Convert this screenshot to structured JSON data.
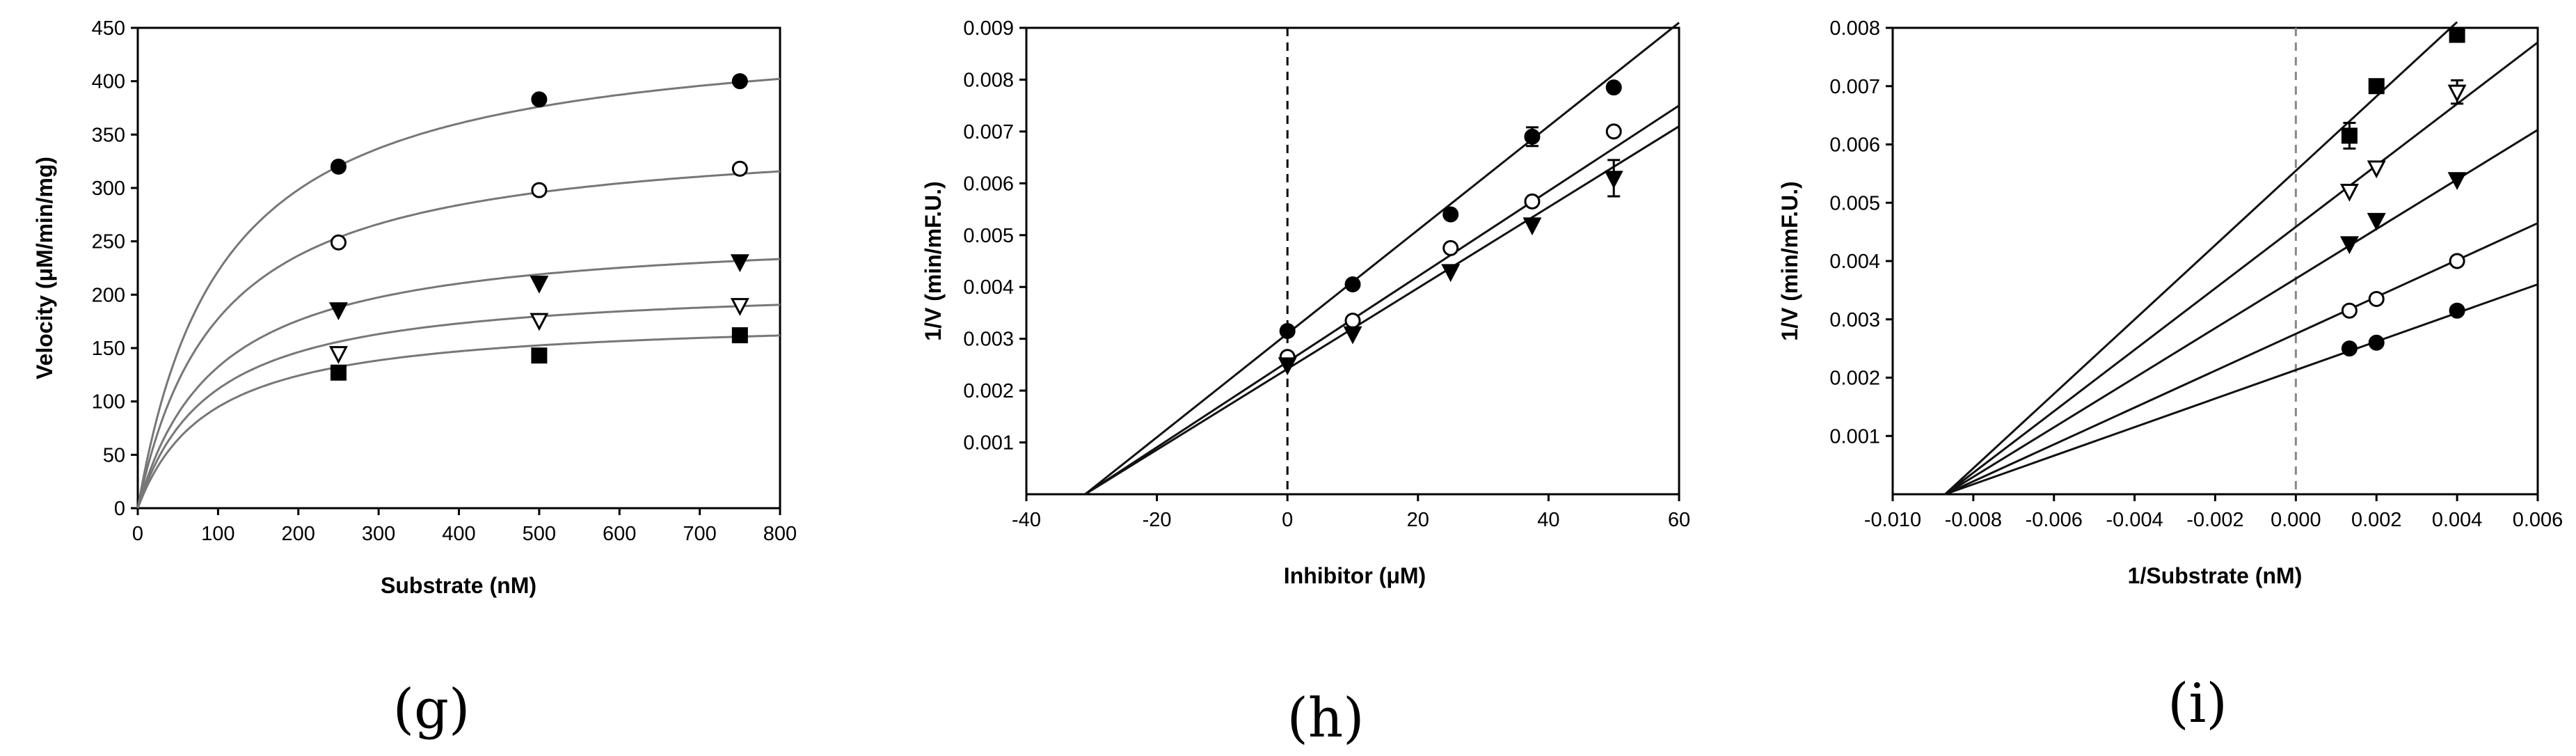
{
  "chart_data": [
    {
      "id": "g",
      "type": "line",
      "caption": "(g)",
      "xlabel": "Substrate (nM)",
      "ylabel": "Velocity (μM/min/mg)",
      "xlim": [
        0,
        800
      ],
      "ylim": [
        0,
        450
      ],
      "xticks": [
        0,
        100,
        200,
        300,
        400,
        500,
        600,
        700,
        800
      ],
      "xtick_labels": [
        "0",
        "100",
        "200",
        "300",
        "400",
        "500",
        "600",
        "700",
        "800"
      ],
      "yticks": [
        0,
        50,
        100,
        150,
        200,
        250,
        300,
        350,
        400,
        450
      ],
      "ytick_labels": [
        "0",
        "50",
        "100",
        "150",
        "200",
        "250",
        "300",
        "350",
        "400",
        "450"
      ],
      "series": [
        {
          "marker": "circle-filled",
          "x": [
            250,
            500,
            750
          ],
          "y": [
            320,
            383,
            400
          ],
          "fit": {
            "type": "michaelis-menten",
            "vmax": 455,
            "km": 105
          }
        },
        {
          "marker": "circle-open",
          "x": [
            250,
            500,
            750
          ],
          "y": [
            249,
            298,
            318
          ],
          "fit": {
            "type": "michaelis-menten",
            "vmax": 355,
            "km": 100
          }
        },
        {
          "marker": "triangle-down-filled",
          "x": [
            250,
            500,
            750
          ],
          "y": [
            186,
            211,
            231
          ],
          "fit": {
            "type": "michaelis-menten",
            "vmax": 262,
            "km": 98
          }
        },
        {
          "marker": "triangle-down-open",
          "x": [
            250,
            500,
            750
          ],
          "y": [
            145,
            176,
            190
          ],
          "fit": {
            "type": "michaelis-menten",
            "vmax": 212,
            "km": 90
          }
        },
        {
          "marker": "square-filled",
          "x": [
            250,
            500,
            750
          ],
          "y": [
            127,
            143,
            162
          ],
          "fit": {
            "type": "michaelis-menten",
            "vmax": 180,
            "km": 90
          }
        }
      ]
    },
    {
      "id": "h",
      "type": "scatter",
      "caption": "(h)",
      "xlabel": "Inhibitor (μM)",
      "ylabel": "1/V (min/mF.U.)",
      "xlim": [
        -40,
        60
      ],
      "ylim": [
        0,
        0.009
      ],
      "xticks": [
        -40,
        -20,
        0,
        20,
        40,
        60
      ],
      "xtick_labels": [
        "-40",
        "-20",
        "0",
        "20",
        "40",
        "60"
      ],
      "yticks": [
        0.001,
        0.002,
        0.003,
        0.004,
        0.005,
        0.006,
        0.007,
        0.008,
        0.009
      ],
      "ytick_labels": [
        "0.001",
        "0.002",
        "0.003",
        "0.004",
        "0.005",
        "0.006",
        "0.007",
        "0.008",
        "0.009"
      ],
      "vline": 0,
      "series": [
        {
          "marker": "circle-filled",
          "x": [
            0,
            10,
            25,
            37.5,
            50
          ],
          "y": [
            0.00315,
            0.00405,
            0.0054,
            0.0069,
            0.00785
          ],
          "err": [
            0,
            0,
            0,
            0.00018,
            0
          ],
          "fit": {
            "type": "linear",
            "x": [
              -31,
              60
            ],
            "y": [
              0,
              0.0091
            ]
          }
        },
        {
          "marker": "circle-open",
          "x": [
            0,
            10,
            25,
            37.5,
            50
          ],
          "y": [
            0.00265,
            0.00335,
            0.00475,
            0.00565,
            0.007
          ],
          "err": [
            0,
            0,
            0,
            0,
            0
          ],
          "fit": {
            "type": "linear",
            "x": [
              -31,
              60
            ],
            "y": [
              0,
              0.0075
            ]
          }
        },
        {
          "marker": "triangle-down-filled",
          "x": [
            0,
            10,
            25,
            37.5,
            50
          ],
          "y": [
            0.0025,
            0.0031,
            0.0043,
            0.0052,
            0.0061
          ],
          "err": [
            0,
            0,
            0,
            0,
            0.00035
          ],
          "fit": {
            "type": "linear",
            "x": [
              -31,
              60
            ],
            "y": [
              0,
              0.0071
            ]
          }
        }
      ]
    },
    {
      "id": "i",
      "type": "scatter",
      "caption": "(i)",
      "xlabel": "1/Substrate (nM)",
      "ylabel": "1/V (min/mF.U.)",
      "xlim": [
        -0.01,
        0.006
      ],
      "ylim": [
        0,
        0.008
      ],
      "xticks": [
        -0.01,
        -0.008,
        -0.006,
        -0.004,
        -0.002,
        0,
        0.002,
        0.004,
        0.006
      ],
      "xtick_labels": [
        "-0.010",
        "-0.008",
        "-0.006",
        "-0.004",
        "-0.002",
        "0.000",
        "0.002",
        "0.004",
        "0.006"
      ],
      "yticks": [
        0.001,
        0.002,
        0.003,
        0.004,
        0.005,
        0.006,
        0.007,
        0.008
      ],
      "ytick_labels": [
        "0.001",
        "0.002",
        "0.003",
        "0.004",
        "0.005",
        "0.006",
        "0.007",
        "0.008"
      ],
      "vline": 0,
      "series": [
        {
          "marker": "square-filled",
          "x": [
            0.00133,
            0.002,
            0.004
          ],
          "y": [
            0.00615,
            0.007,
            0.00788
          ],
          "err": [
            0.00022,
            0,
            0
          ],
          "fit": {
            "type": "linear",
            "x": [
              -0.0087,
              0.004
            ],
            "y": [
              0,
              0.0081
            ]
          }
        },
        {
          "marker": "triangle-down-open",
          "x": [
            0.00133,
            0.002,
            0.004
          ],
          "y": [
            0.0052,
            0.0056,
            0.0069
          ],
          "err": [
            0,
            0,
            0.0002
          ],
          "fit": {
            "type": "linear",
            "x": [
              -0.0087,
              0.006
            ],
            "y": [
              0,
              0.00775
            ]
          }
        },
        {
          "marker": "triangle-down-filled",
          "x": [
            0.00133,
            0.002,
            0.004
          ],
          "y": [
            0.0043,
            0.0047,
            0.0054
          ],
          "err": [
            0,
            0,
            0
          ],
          "fit": {
            "type": "linear",
            "x": [
              -0.0087,
              0.006
            ],
            "y": [
              0,
              0.00625
            ]
          }
        },
        {
          "marker": "circle-open",
          "x": [
            0.00133,
            0.002,
            0.004
          ],
          "y": [
            0.00315,
            0.00335,
            0.004
          ],
          "err": [
            0,
            0,
            0
          ],
          "fit": {
            "type": "linear",
            "x": [
              -0.0087,
              0.006
            ],
            "y": [
              0,
              0.00465
            ]
          }
        },
        {
          "marker": "circle-filled",
          "x": [
            0.00133,
            0.002,
            0.004
          ],
          "y": [
            0.0025,
            0.0026,
            0.00315
          ],
          "err": [
            0,
            0,
            0
          ],
          "fit": {
            "type": "linear",
            "x": [
              -0.0087,
              0.006
            ],
            "y": [
              0,
              0.0036
            ]
          }
        }
      ]
    }
  ]
}
